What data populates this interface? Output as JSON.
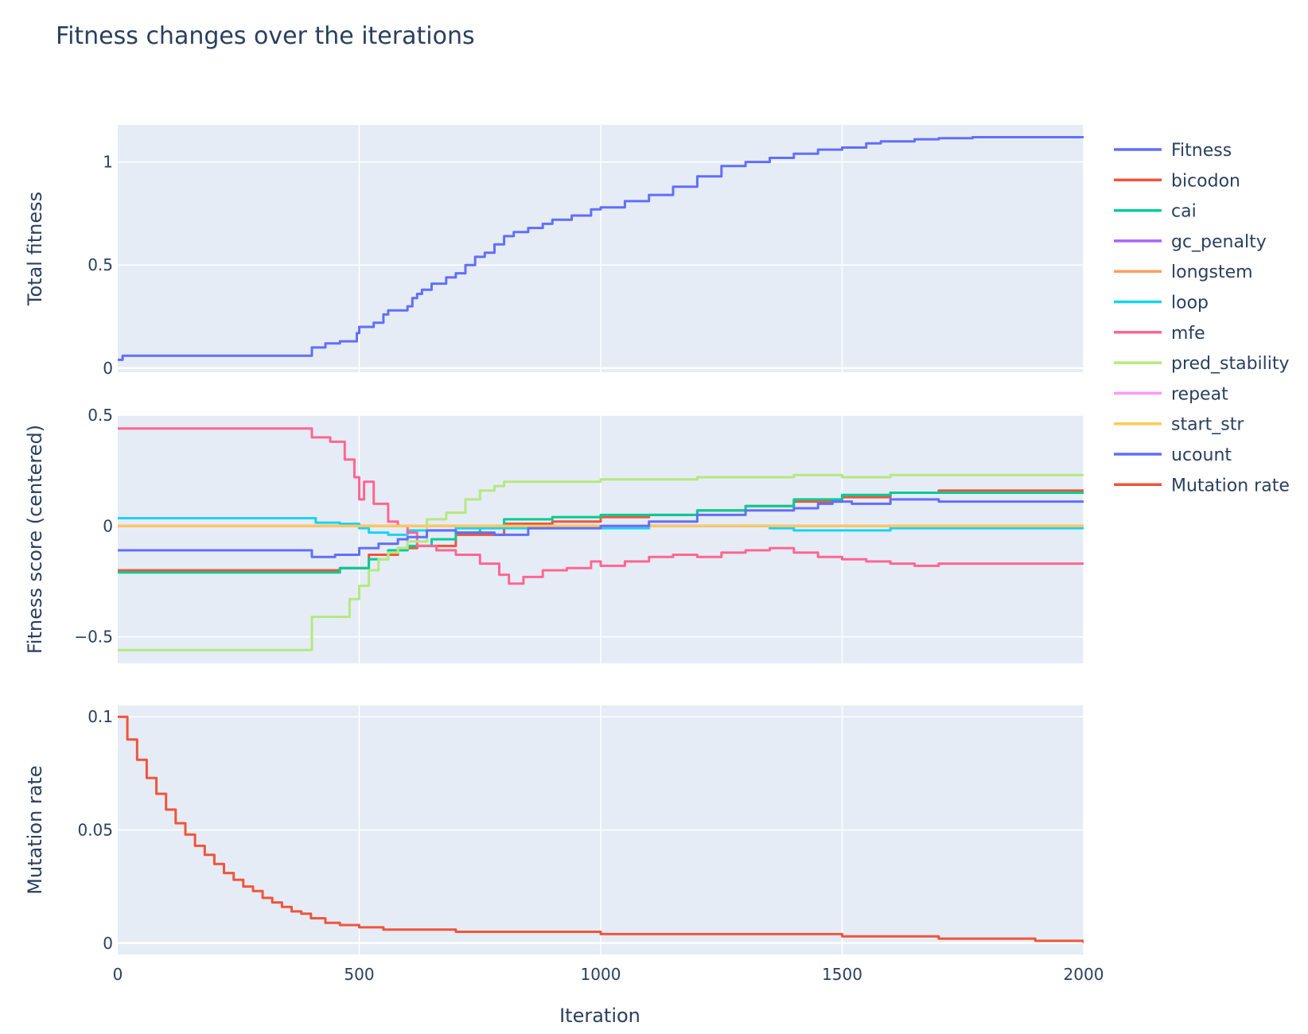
{
  "chart_data": {
    "type": "line",
    "title": "Fitness changes over the iterations",
    "xlabel": "Iteration",
    "xlim": [
      0,
      2000
    ],
    "xticks": [
      0,
      500,
      1000,
      1500,
      2000
    ],
    "xtick_labels": [
      "0",
      "500",
      "1000",
      "1500",
      "2000"
    ],
    "grid": true,
    "legend_position": "right",
    "panels": [
      {
        "ylabel": "Total fitness",
        "ylim": [
          -0.02,
          1.18
        ],
        "yticks": [
          0,
          0.5,
          1
        ],
        "ytick_labels": [
          "0",
          "0.5",
          "1"
        ],
        "series": [
          {
            "name": "Fitness",
            "color": "#636efa",
            "x": [
              0,
              10,
              400,
              402,
              430,
              460,
              495,
              500,
              530,
              550,
              560,
              600,
              610,
              620,
              630,
              650,
              680,
              700,
              720,
              740,
              760,
              780,
              800,
              820,
              850,
              880,
              900,
              940,
              980,
              1000,
              1050,
              1100,
              1150,
              1200,
              1250,
              1300,
              1350,
              1400,
              1450,
              1500,
              1550,
              1580,
              1650,
              1700,
              1770,
              2000
            ],
            "y": [
              0.04,
              0.06,
              0.06,
              0.1,
              0.12,
              0.13,
              0.17,
              0.2,
              0.22,
              0.26,
              0.28,
              0.3,
              0.34,
              0.36,
              0.38,
              0.41,
              0.44,
              0.46,
              0.5,
              0.54,
              0.56,
              0.6,
              0.64,
              0.66,
              0.68,
              0.7,
              0.72,
              0.74,
              0.77,
              0.78,
              0.81,
              0.84,
              0.88,
              0.93,
              0.98,
              1.0,
              1.02,
              1.04,
              1.06,
              1.07,
              1.09,
              1.1,
              1.11,
              1.115,
              1.12,
              1.12
            ]
          }
        ]
      },
      {
        "ylabel": "Fitness score (centered)",
        "ylim": [
          -0.62,
          0.5
        ],
        "yticks": [
          -0.5,
          0,
          0.5
        ],
        "ytick_labels": [
          "−0.5",
          "0",
          "0.5"
        ],
        "series": [
          {
            "name": "bicodon",
            "color": "#ef553b",
            "x": [
              0,
              400,
              460,
              520,
              580,
              620,
              700,
              800,
              900,
              1000,
              1100,
              1200,
              1300,
              1400,
              1500,
              1600,
              1700,
              2000
            ],
            "y": [
              -0.2,
              -0.2,
              -0.19,
              -0.13,
              -0.1,
              -0.09,
              -0.04,
              0.01,
              0.02,
              0.04,
              0.05,
              0.07,
              0.09,
              0.11,
              0.13,
              0.15,
              0.16,
              0.16
            ]
          },
          {
            "name": "cai",
            "color": "#00cc96",
            "x": [
              0,
              400,
              460,
              520,
              560,
              600,
              650,
              700,
              750,
              800,
              900,
              1000,
              1100,
              1200,
              1300,
              1400,
              1500,
              1600,
              2000
            ],
            "y": [
              -0.21,
              -0.21,
              -0.19,
              -0.15,
              -0.11,
              -0.09,
              -0.06,
              -0.03,
              0.0,
              0.03,
              0.04,
              0.05,
              0.05,
              0.07,
              0.09,
              0.12,
              0.14,
              0.15,
              0.15
            ]
          },
          {
            "name": "gc_penalty",
            "color": "#ab63fa",
            "x": [
              0,
              2000
            ],
            "y": [
              0.0,
              0.0
            ]
          },
          {
            "name": "longstem",
            "color": "#ffa15a",
            "x": [
              0,
              2000
            ],
            "y": [
              0.0,
              0.0
            ]
          },
          {
            "name": "loop",
            "color": "#19d3f3",
            "x": [
              0,
              400,
              410,
              460,
              500,
              520,
              560,
              600,
              650,
              700,
              800,
              900,
              1000,
              1100,
              1200,
              1300,
              1350,
              1400,
              1500,
              1600,
              2000
            ],
            "y": [
              0.035,
              0.035,
              0.015,
              0.01,
              -0.01,
              -0.03,
              -0.04,
              -0.02,
              -0.02,
              -0.01,
              -0.01,
              -0.01,
              -0.01,
              0.0,
              0.0,
              0.0,
              -0.01,
              -0.02,
              -0.02,
              -0.01,
              -0.01
            ]
          },
          {
            "name": "mfe",
            "color": "#ff6692",
            "x": [
              0,
              400,
              402,
              440,
              470,
              490,
              500,
              510,
              530,
              560,
              580,
              600,
              620,
              660,
              700,
              750,
              790,
              810,
              840,
              880,
              930,
              980,
              1000,
              1050,
              1100,
              1150,
              1200,
              1250,
              1300,
              1350,
              1400,
              1450,
              1500,
              1550,
              1600,
              1650,
              1700,
              2000
            ],
            "y": [
              0.44,
              0.44,
              0.4,
              0.38,
              0.3,
              0.22,
              0.12,
              0.2,
              0.1,
              0.02,
              0.0,
              -0.03,
              -0.09,
              -0.11,
              -0.13,
              -0.17,
              -0.22,
              -0.26,
              -0.23,
              -0.2,
              -0.19,
              -0.16,
              -0.18,
              -0.16,
              -0.14,
              -0.13,
              -0.14,
              -0.12,
              -0.11,
              -0.1,
              -0.12,
              -0.14,
              -0.15,
              -0.16,
              -0.17,
              -0.18,
              -0.17,
              -0.17
            ]
          },
          {
            "name": "pred_stability",
            "color": "#b6e880",
            "x": [
              0,
              400,
              402,
              460,
              480,
              500,
              520,
              540,
              560,
              580,
              600,
              640,
              680,
              720,
              750,
              780,
              800,
              900,
              1000,
              1100,
              1200,
              1300,
              1400,
              1500,
              1600,
              1700,
              2000
            ],
            "y": [
              -0.56,
              -0.56,
              -0.41,
              -0.41,
              -0.33,
              -0.27,
              -0.2,
              -0.15,
              -0.12,
              -0.1,
              -0.07,
              0.03,
              0.06,
              0.12,
              0.16,
              0.18,
              0.2,
              0.2,
              0.21,
              0.21,
              0.22,
              0.22,
              0.23,
              0.22,
              0.23,
              0.23,
              0.23
            ]
          },
          {
            "name": "repeat",
            "color": "#ff97ff",
            "x": [
              0,
              2000
            ],
            "y": [
              0.0,
              0.0
            ]
          },
          {
            "name": "start_str",
            "color": "#fecb52",
            "x": [
              0,
              2000
            ],
            "y": [
              0.0,
              0.0
            ]
          },
          {
            "name": "ucount",
            "color": "#636efa",
            "x": [
              0,
              400,
              402,
              450,
              500,
              540,
              580,
              600,
              640,
              700,
              780,
              850,
              950,
              1000,
              1100,
              1200,
              1300,
              1400,
              1450,
              1480,
              1520,
              1600,
              1700,
              2000
            ],
            "y": [
              -0.11,
              -0.11,
              -0.14,
              -0.13,
              -0.1,
              -0.08,
              -0.06,
              -0.05,
              -0.02,
              -0.03,
              -0.04,
              -0.01,
              -0.01,
              0.0,
              0.02,
              0.05,
              0.07,
              0.08,
              0.1,
              0.11,
              0.1,
              0.12,
              0.11,
              0.11
            ]
          }
        ]
      },
      {
        "ylabel": "Mutation rate",
        "ylim": [
          -0.005,
          0.105
        ],
        "yticks": [
          0,
          0.05,
          0.1
        ],
        "ytick_labels": [
          "0",
          "0.05",
          "0.1"
        ],
        "series": [
          {
            "name": "Mutation rate",
            "color": "#ef553b",
            "x": [
              0,
              20,
              40,
              60,
              80,
              100,
              120,
              140,
              160,
              180,
              200,
              220,
              240,
              260,
              280,
              300,
              320,
              340,
              360,
              380,
              400,
              430,
              460,
              500,
              550,
              600,
              700,
              800,
              900,
              1000,
              1100,
              1200,
              1300,
              1400,
              1500,
              1600,
              1700,
              1800,
              1900,
              2000
            ],
            "y": [
              0.1,
              0.09,
              0.081,
              0.073,
              0.066,
              0.059,
              0.053,
              0.048,
              0.043,
              0.039,
              0.035,
              0.031,
              0.028,
              0.025,
              0.023,
              0.02,
              0.018,
              0.016,
              0.014,
              0.013,
              0.011,
              0.009,
              0.008,
              0.007,
              0.006,
              0.006,
              0.005,
              0.005,
              0.005,
              0.004,
              0.004,
              0.004,
              0.004,
              0.004,
              0.003,
              0.003,
              0.002,
              0.002,
              0.001,
              0.0
            ]
          }
        ]
      }
    ],
    "legend": [
      {
        "name": "Fitness",
        "color": "#636efa"
      },
      {
        "name": "bicodon",
        "color": "#ef553b"
      },
      {
        "name": "cai",
        "color": "#00cc96"
      },
      {
        "name": "gc_penalty",
        "color": "#ab63fa"
      },
      {
        "name": "longstem",
        "color": "#ffa15a"
      },
      {
        "name": "loop",
        "color": "#19d3f3"
      },
      {
        "name": "mfe",
        "color": "#ff6692"
      },
      {
        "name": "pred_stability",
        "color": "#b6e880"
      },
      {
        "name": "repeat",
        "color": "#ff97ff"
      },
      {
        "name": "start_str",
        "color": "#fecb52"
      },
      {
        "name": "ucount",
        "color": "#636efa"
      },
      {
        "name": "Mutation rate",
        "color": "#ef553b"
      }
    ]
  }
}
